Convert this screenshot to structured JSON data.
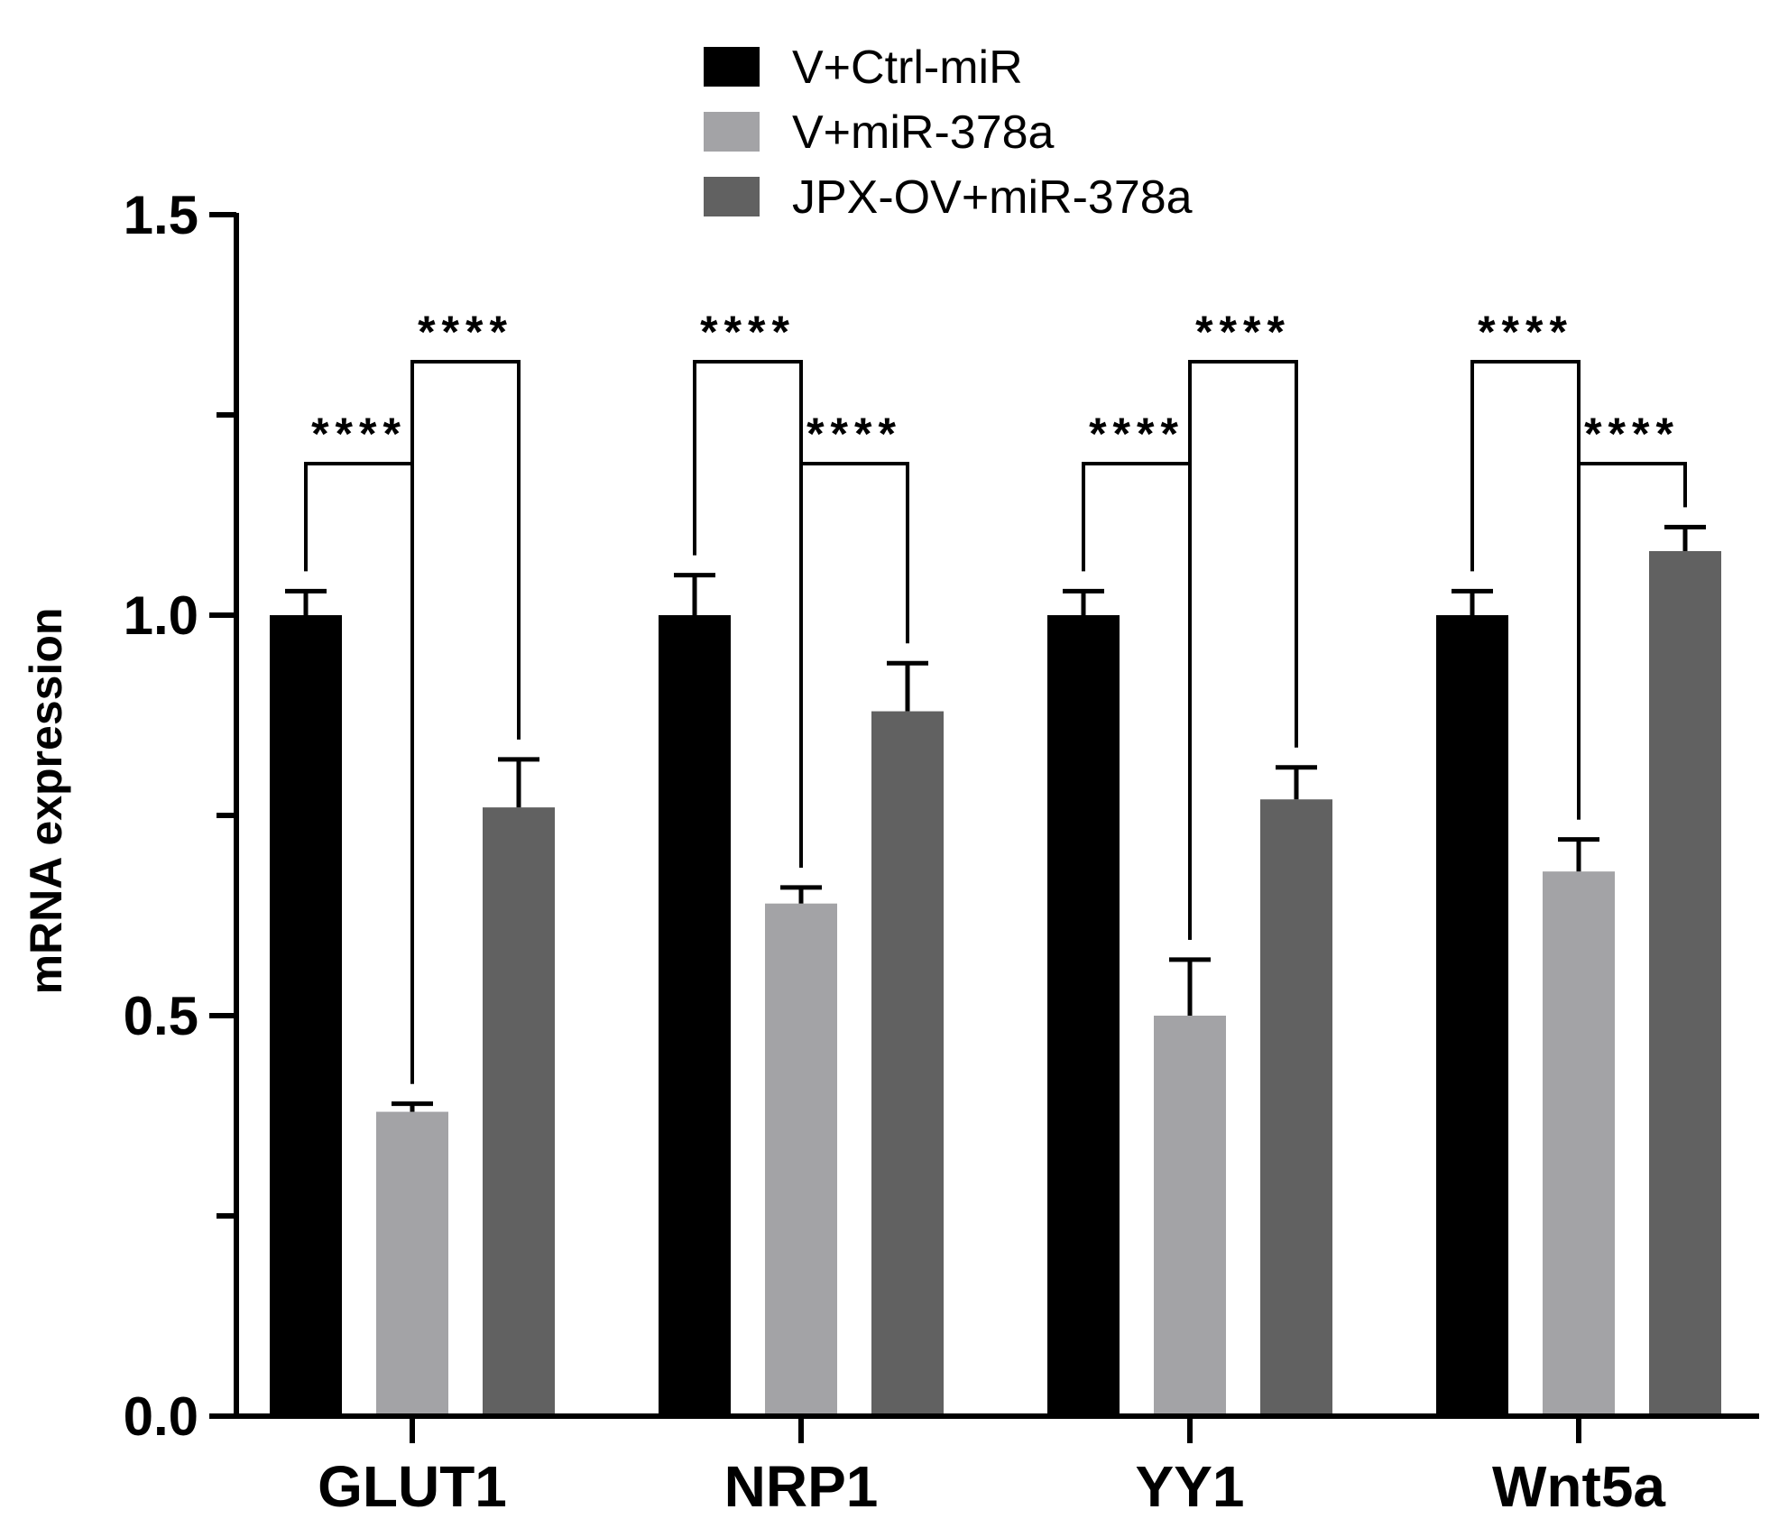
{
  "chart_data": {
    "type": "bar",
    "title": "",
    "xlabel": "",
    "ylabel": "mRNA expression",
    "ylim": [
      0,
      1.5
    ],
    "yticks": [
      "0.0",
      "0.5",
      "1.0",
      "1.5"
    ],
    "categories": [
      "GLUT1",
      "NRP1",
      "YY1",
      "Wnt5a"
    ],
    "legend_position": "top-center",
    "series": [
      {
        "name": "V+Ctrl-miR",
        "color": "#000000",
        "values": [
          1.0,
          1.0,
          1.0,
          1.0
        ],
        "errors": [
          0.03,
          0.05,
          0.03,
          0.03
        ]
      },
      {
        "name": "V+miR-378a",
        "color": "#a3a3a6",
        "values": [
          0.38,
          0.64,
          0.5,
          0.68
        ],
        "errors": [
          0.01,
          0.02,
          0.07,
          0.04
        ]
      },
      {
        "name": "JPX-OV+miR-378a",
        "color": "#616161",
        "values": [
          0.76,
          0.88,
          0.77,
          1.08
        ],
        "errors": [
          0.06,
          0.06,
          0.04,
          0.03
        ]
      }
    ],
    "significance": [
      {
        "category": 0,
        "from": 0,
        "to": 1,
        "label": "****",
        "level": 0
      },
      {
        "category": 0,
        "from": 1,
        "to": 2,
        "label": "****",
        "level": 1
      },
      {
        "category": 1,
        "from": 0,
        "to": 1,
        "label": "****",
        "level": 1
      },
      {
        "category": 1,
        "from": 1,
        "to": 2,
        "label": "****",
        "level": 0
      },
      {
        "category": 2,
        "from": 0,
        "to": 1,
        "label": "****",
        "level": 0
      },
      {
        "category": 2,
        "from": 1,
        "to": 2,
        "label": "****",
        "level": 1
      },
      {
        "category": 3,
        "from": 0,
        "to": 1,
        "label": "****",
        "level": 1
      },
      {
        "category": 3,
        "from": 1,
        "to": 2,
        "label": "****",
        "level": 0
      }
    ]
  }
}
